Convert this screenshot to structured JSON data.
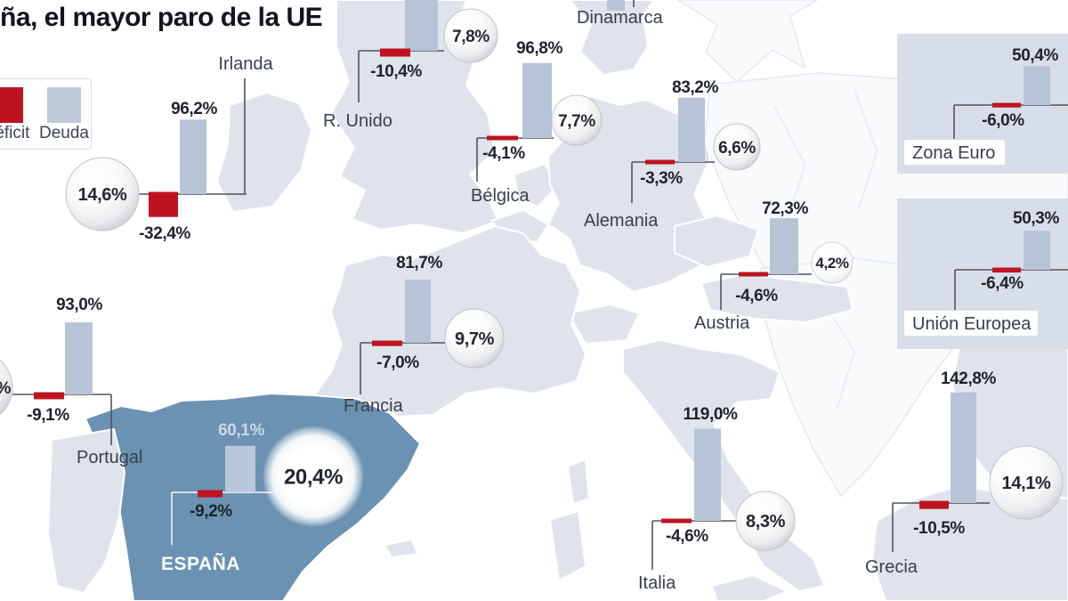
{
  "title": "ña, el mayor paro de la UE",
  "legend": {
    "deficit_label": "Déficit",
    "debt_label": "Deuda"
  },
  "colors": {
    "deficit": "#be1421",
    "debt_bar": "#b7c4d7",
    "spain_fill": "#6b92b3",
    "land_fill": "#dfe3ec",
    "panel_fill": "#d8dee9"
  },
  "chart_data": {
    "type": "bar",
    "title": "ña, el mayor paro de la UE",
    "units": "%",
    "series": [
      "Deuda",
      "Déficit",
      "Paro"
    ],
    "legend_position": "top-left",
    "note": "Bar pairs per country over Europe map: blue bar = debt (Deuda), red bar below baseline = deficit (Déficit), sphere = unemployment rate",
    "countries": [
      {
        "name": "Irlanda",
        "debt": 96.2,
        "deficit": -32.4,
        "unemployment": 14.6,
        "debt_label": "96,2%",
        "deficit_label": "-32,4%",
        "unemployment_label": "14,6%"
      },
      {
        "name": "R. Unido",
        "debt": null,
        "deficit": -10.4,
        "unemployment": 7.8,
        "debt_label": "",
        "deficit_label": "-10,4%",
        "unemployment_label": "7,8%"
      },
      {
        "name": "Dinamarca",
        "debt": null,
        "deficit": null,
        "unemployment": null,
        "debt_label": "",
        "deficit_label": "",
        "unemployment_label": ""
      },
      {
        "name": "Bélgica",
        "debt": 96.8,
        "deficit": -4.1,
        "unemployment": 7.7,
        "debt_label": "96,8%",
        "deficit_label": "-4,1%",
        "unemployment_label": "7,7%"
      },
      {
        "name": "Alemania",
        "debt": 83.2,
        "deficit": -3.3,
        "unemployment": 6.6,
        "debt_label": "83,2%",
        "deficit_label": "-3,3%",
        "unemployment_label": "6,6%"
      },
      {
        "name": "Austria",
        "debt": 72.3,
        "deficit": -4.6,
        "unemployment": 4.2,
        "debt_label": "72,3%",
        "deficit_label": "-4,6%",
        "unemployment_label": "4,2%"
      },
      {
        "name": "Zona Euro",
        "debt": 50.4,
        "deficit": -6.0,
        "unemployment": null,
        "debt_label": "50,4%",
        "deficit_label": "-6,0%",
        "unemployment_label": ""
      },
      {
        "name": "Unión Europea",
        "debt": 50.3,
        "deficit": -6.4,
        "unemployment": null,
        "debt_label": "50,3%",
        "deficit_label": "-6,4%",
        "unemployment_label": ""
      },
      {
        "name": "Francia",
        "debt": 81.7,
        "deficit": -7.0,
        "unemployment": 9.7,
        "debt_label": "81,7%",
        "deficit_label": "-7,0%",
        "unemployment_label": "9,7%"
      },
      {
        "name": "Portugal",
        "debt": 93.0,
        "deficit": -9.1,
        "unemployment": null,
        "debt_label": "93,0%",
        "deficit_label": "-9,1%",
        "unemployment_label": "%"
      },
      {
        "name": "ESPAÑA",
        "debt": 60.1,
        "deficit": -9.2,
        "unemployment": 20.4,
        "debt_label": "60,1%",
        "deficit_label": "-9,2%",
        "unemployment_label": "20,4%"
      },
      {
        "name": "Italia",
        "debt": 119.0,
        "deficit": -4.6,
        "unemployment": 8.3,
        "debt_label": "119,0%",
        "deficit_label": "-4,6%",
        "unemployment_label": "8,3%"
      },
      {
        "name": "Grecia",
        "debt": 142.8,
        "deficit": -10.5,
        "unemployment": 14.1,
        "debt_label": "142,8%",
        "deficit_label": "-10,5%",
        "unemployment_label": "14,1%"
      }
    ]
  }
}
